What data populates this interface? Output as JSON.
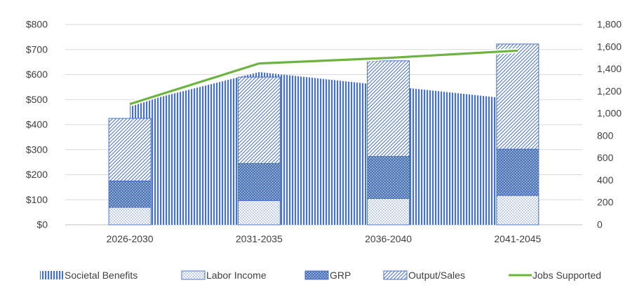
{
  "chart_data": {
    "type": "bar",
    "categories": [
      "2026-2030",
      "2031-2035",
      "2036-2040",
      "2041-2045"
    ],
    "y_left": {
      "ylim": [
        0,
        800
      ],
      "ticks": [
        "$0",
        "$100",
        "$200",
        "$300",
        "$400",
        "$500",
        "$600",
        "$700",
        "$800"
      ]
    },
    "y_right": {
      "ylim": [
        0,
        1800
      ],
      "ticks": [
        "0",
        "200",
        "400",
        "600",
        "800",
        "1,000",
        "1,200",
        "1,400",
        "1,600",
        "1,800"
      ]
    },
    "grid": true,
    "legend_position": "bottom",
    "series": [
      {
        "name": "Societal Benefits",
        "kind": "area",
        "axis": "left",
        "values": [
          480,
          610,
          555,
          500
        ],
        "color": "#4a72c4"
      },
      {
        "name": "Labor Income",
        "kind": "stacked-bar",
        "axis": "left",
        "values": [
          70,
          97,
          105,
          117
        ],
        "color": "#4a72c4"
      },
      {
        "name": "GRP",
        "kind": "stacked-bar",
        "axis": "left",
        "values": [
          105,
          148,
          168,
          185
        ],
        "color": "#4a72c4"
      },
      {
        "name": "Output/Sales",
        "kind": "stacked-bar",
        "axis": "left",
        "values": [
          250,
          345,
          382,
          420
        ],
        "color": "#4a72c4"
      },
      {
        "name": "Jobs Supported",
        "kind": "line",
        "axis": "right",
        "values": [
          1085,
          1450,
          1500,
          1565
        ],
        "color": "#6cb33f"
      }
    ]
  }
}
